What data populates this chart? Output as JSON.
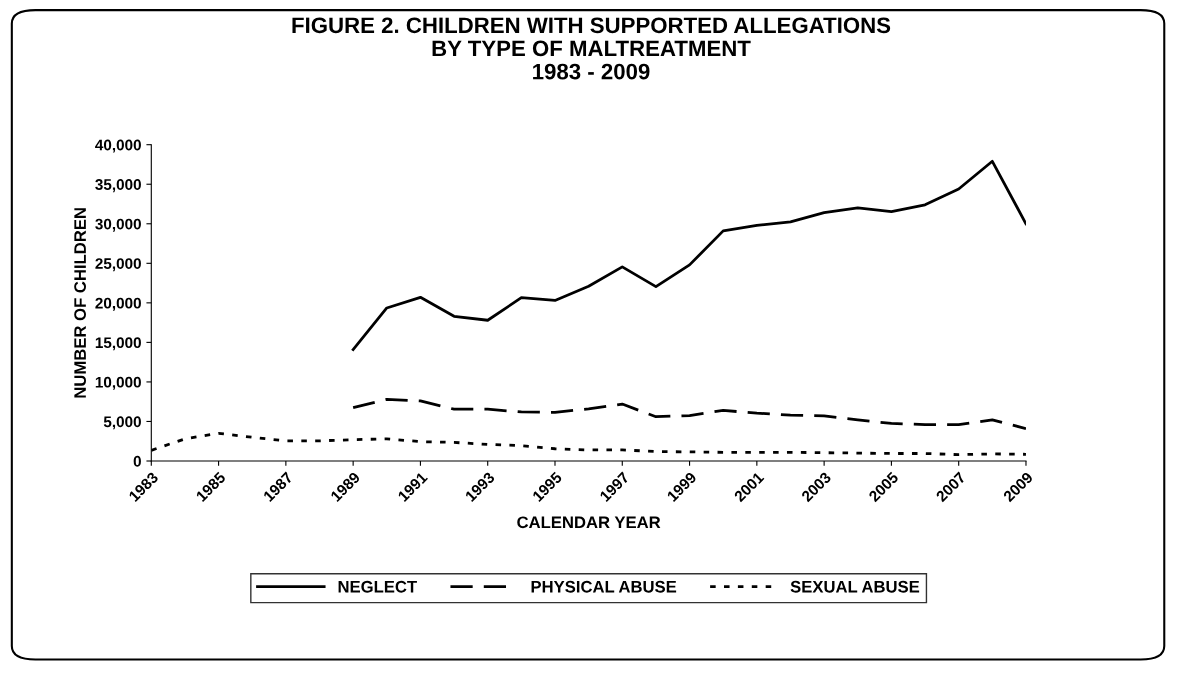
{
  "chart_data": {
    "type": "line",
    "title": "FIGURE 2. CHILDREN WITH SUPPORTED ALLEGATIONS\nBY TYPE OF MALTREATMENT\n1983 - 2009",
    "xlabel": "CALENDAR YEAR",
    "ylabel": "NUMBER OF CHILDREN",
    "x": [
      1983,
      1984,
      1985,
      1986,
      1987,
      1988,
      1989,
      1990,
      1991,
      1992,
      1993,
      1994,
      1995,
      1996,
      1997,
      1998,
      1999,
      2000,
      2001,
      2002,
      2003,
      2004,
      2005,
      2006,
      2007,
      2008,
      2009
    ],
    "series": [
      {
        "name": "NEGLECT",
        "color": "#000000",
        "line_style": "solid",
        "values": [
          null,
          null,
          null,
          null,
          null,
          null,
          14100,
          19350,
          20700,
          18300,
          17800,
          20650,
          20300,
          22100,
          24550,
          22050,
          24800,
          29100,
          29800,
          30250,
          31400,
          32000,
          31550,
          32400,
          34400,
          37900,
          30000
        ]
      },
      {
        "name": "PHYSICAL ABUSE",
        "color": "#000000",
        "line_style": "dashed",
        "values": [
          null,
          null,
          null,
          null,
          null,
          null,
          6750,
          7800,
          7600,
          6550,
          6550,
          6200,
          6150,
          6600,
          7200,
          5600,
          5750,
          6400,
          6050,
          5800,
          5700,
          5200,
          4750,
          4600,
          4600,
          5200,
          4100
        ]
      },
      {
        "name": "SEXUAL ABUSE",
        "color": "#000000",
        "line_style": "dotted",
        "values": [
          1350,
          2800,
          3500,
          3000,
          2550,
          2550,
          2700,
          2800,
          2450,
          2350,
          2100,
          1950,
          1550,
          1400,
          1400,
          1200,
          1150,
          1100,
          1100,
          1100,
          1050,
          1000,
          950,
          950,
          800,
          900,
          850
        ]
      }
    ],
    "xlim": [
      1983,
      2009
    ],
    "xticks": [
      1983,
      1985,
      1987,
      1989,
      1991,
      1993,
      1995,
      1997,
      1999,
      2001,
      2003,
      2005,
      2007,
      2009
    ],
    "ylim": [
      0,
      40000
    ],
    "yticks": [
      0,
      {
        "value": 5000,
        "label": "5,000"
      },
      {
        "value": 10000,
        "label": "10,000"
      },
      {
        "value": 15000,
        "label": "15,000"
      },
      {
        "value": 20000,
        "label": "20,000"
      },
      {
        "value": 25000,
        "label": "25,000"
      },
      {
        "value": 30000,
        "label": "30,000"
      },
      {
        "value": 35000,
        "label": "35,000"
      },
      {
        "value": 40000,
        "label": "40,000"
      }
    ],
    "grid": false,
    "legend": "bottom",
    "marker": "none"
  }
}
